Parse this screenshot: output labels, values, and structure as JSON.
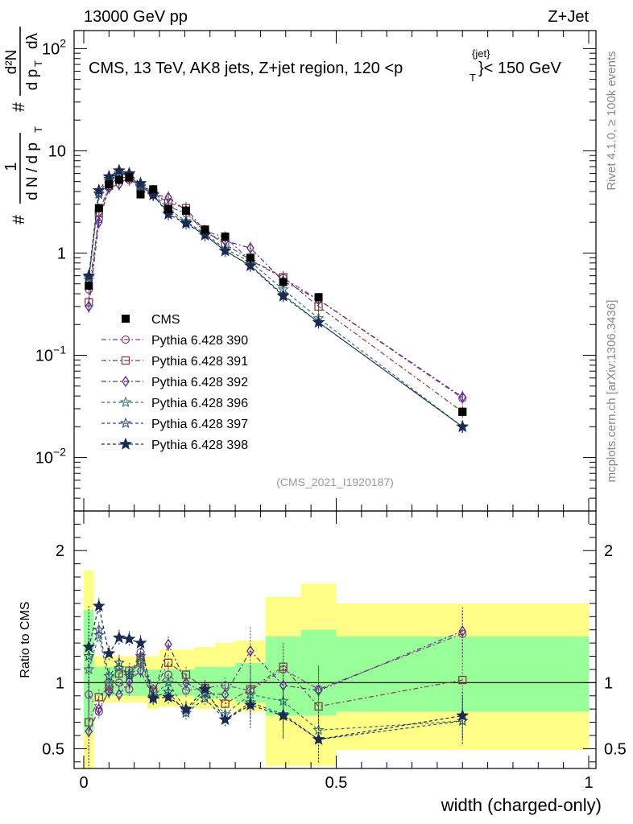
{
  "header": {
    "left": "13000 GeV pp",
    "right": "Z+Jet",
    "rivet": "Rivet 4.1.0, ≥ 100k events",
    "mcplots": "mcplots.cern.ch [arXiv:1306.3436]",
    "ref": "(CMS_2021_I1920187)"
  },
  "titles": {
    "main_part1": "CMS, 13 TeV, AK8 jets, Z+jet region, 120 <p",
    "main_sup": "{jet}",
    "main_sub": "T",
    "main_part2": "}< 150 GeV",
    "ylabel_lhs_hash": "#",
    "ylabel_lhs_num": "1",
    "ylabel_lhs_den": "d N / d p",
    "ylabel_lhs_den_sub": "T",
    "ylabel_rhs_hash": "#",
    "ylabel_rhs_num": "d²N",
    "ylabel_rhs_den1": "d p",
    "ylabel_rhs_den1_sub": "T",
    "ylabel_rhs_den2": "dλ",
    "ratio_ylabel": "Ratio to CMS",
    "xlabel": "width (charged-only)"
  },
  "axis_ticks": {
    "top_decades": [
      {
        "base": "10",
        "exp": "2"
      },
      {
        "base": "10",
        "exp": ""
      },
      {
        "base": "1",
        "exp": ""
      },
      {
        "base": "10",
        "exp": "−1"
      },
      {
        "base": "10",
        "exp": "−2"
      }
    ],
    "ratio_left": [
      "2",
      "1",
      "0.5"
    ],
    "ratio_right": [
      "2",
      "1",
      "0.5"
    ],
    "x": [
      "0",
      "0.5",
      "1"
    ]
  },
  "colors": {
    "data": "#000000",
    "band_inner": "#99ff99",
    "band_outer": "#ffff88",
    "s390": "#7b4a86",
    "s391": "#7a4444",
    "s392": "#5b2e86",
    "s396": "#3d7070",
    "s397": "#2c4a6e",
    "s398": "#1a2a50"
  },
  "chart_data": {
    "type": "line",
    "x_range": [
      0,
      1.0
    ],
    "y_log_range": [
      0.003,
      150
    ],
    "ratio_range": [
      0.35,
      2.3
    ],
    "bin_edges": [
      0,
      0.02,
      0.04,
      0.06,
      0.08,
      0.1,
      0.125,
      0.15,
      0.185,
      0.22,
      0.26,
      0.3,
      0.36,
      0.43,
      0.5,
      1.0
    ],
    "x": [
      0.01,
      0.03,
      0.05,
      0.07,
      0.09,
      0.1125,
      0.1375,
      0.1675,
      0.2025,
      0.24,
      0.28,
      0.33,
      0.395,
      0.465,
      0.75
    ],
    "legend_position": "left-middle",
    "cms": {
      "label": "CMS",
      "values": [
        0.48,
        2.75,
        4.7,
        5.2,
        5.5,
        3.75,
        4.2,
        2.7,
        2.6,
        1.7,
        1.45,
        0.9,
        0.52,
        0.37,
        0.028
      ],
      "band_inner_up": [
        1.55,
        1.12,
        1.12,
        1.12,
        1.12,
        1.12,
        1.1,
        1.1,
        1.1,
        1.12,
        1.12,
        1.15,
        1.35,
        1.4,
        1.35
      ],
      "band_inner_down": [
        0.62,
        0.9,
        0.9,
        0.9,
        0.9,
        0.9,
        0.9,
        0.9,
        0.9,
        0.88,
        0.88,
        0.85,
        0.75,
        0.75,
        0.78
      ],
      "band_outer_up": [
        1.85,
        1.2,
        1.2,
        1.2,
        1.2,
        1.2,
        1.2,
        1.25,
        1.25,
        1.27,
        1.3,
        1.32,
        1.65,
        1.75,
        1.6
      ],
      "band_outer_down": [
        0.35,
        0.85,
        0.85,
        0.85,
        0.85,
        0.85,
        0.8,
        0.82,
        0.82,
        0.8,
        0.8,
        0.78,
        0.37,
        0.37,
        0.49
      ]
    },
    "series": [
      {
        "name": "Pythia 6.428 390",
        "key": "s390",
        "marker": "circle-open",
        "dash": "6,3,2,3",
        "values": [
          0.44,
          2.15,
          4.4,
          5.2,
          5.2,
          4.6,
          4.0,
          2.85,
          2.45,
          1.64,
          1.42,
          0.85,
          0.57,
          0.35,
          0.038
        ],
        "ratio": [
          0.91,
          0.78,
          0.94,
          1.0,
          0.95,
          1.23,
          0.95,
          1.06,
          0.94,
          0.96,
          0.98,
          0.94,
          1.1,
          0.95,
          1.37
        ]
      },
      {
        "name": "Pythia 6.428 391",
        "key": "s391",
        "marker": "square-open",
        "dash": "6,3,2,3",
        "values": [
          0.33,
          2.45,
          4.55,
          5.55,
          5.4,
          4.4,
          3.9,
          3.1,
          2.75,
          1.64,
          1.22,
          0.86,
          0.58,
          0.3,
          0.028
        ],
        "ratio": [
          0.7,
          0.89,
          0.97,
          1.07,
          1.09,
          1.17,
          0.93,
          1.15,
          1.06,
          0.96,
          0.84,
          0.95,
          1.12,
          0.82,
          1.02
        ]
      },
      {
        "name": "Pythia 6.428 392",
        "key": "s392",
        "marker": "diamond-open",
        "dash": "6,3,2,3",
        "values": [
          0.3,
          2.0,
          4.35,
          4.7,
          5.55,
          4.1,
          3.75,
          3.5,
          2.6,
          1.57,
          1.32,
          1.12,
          0.53,
          0.35,
          0.039
        ],
        "ratio": [
          0.63,
          0.8,
          0.93,
          0.91,
          1.01,
          1.09,
          0.89,
          1.29,
          1.0,
          0.92,
          0.91,
          1.24,
          0.98,
          0.94,
          1.39
        ]
      },
      {
        "name": "Pythia 6.428 396",
        "key": "s396",
        "marker": "star-open",
        "dash": "4,3",
        "values": [
          0.55,
          3.75,
          5.1,
          5.8,
          5.9,
          4.4,
          3.8,
          2.7,
          2.05,
          1.55,
          1.1,
          0.82,
          0.44,
          0.23,
          0.02
        ],
        "ratio": [
          1.1,
          1.36,
          1.0,
          1.11,
          1.07,
          1.15,
          0.9,
          1.0,
          0.79,
          0.92,
          0.76,
          0.91,
          0.86,
          0.64,
          0.71
        ]
      },
      {
        "name": "Pythia 6.428 397",
        "key": "s397",
        "marker": "star-open",
        "dash": "4,3",
        "values": [
          0.58,
          3.85,
          5.3,
          6.0,
          5.8,
          4.5,
          3.75,
          2.5,
          2.0,
          1.5,
          1.05,
          0.76,
          0.39,
          0.21,
          0.02
        ],
        "ratio": [
          1.2,
          1.4,
          1.05,
          1.15,
          1.05,
          1.2,
          0.89,
          0.93,
          0.77,
          0.88,
          0.72,
          0.85,
          0.76,
          0.57,
          0.71
        ]
      },
      {
        "name": "Pythia 6.428 398",
        "key": "s398",
        "marker": "star-filled",
        "dash": "4,3",
        "values": [
          0.6,
          4.1,
          5.6,
          6.4,
          6.0,
          4.8,
          3.7,
          2.4,
          1.95,
          1.5,
          1.05,
          0.75,
          0.38,
          0.21,
          0.02
        ],
        "ratio": [
          1.27,
          1.58,
          1.22,
          1.34,
          1.33,
          1.3,
          0.88,
          0.89,
          0.8,
          0.95,
          0.72,
          0.83,
          0.75,
          0.57,
          0.75
        ]
      }
    ]
  }
}
